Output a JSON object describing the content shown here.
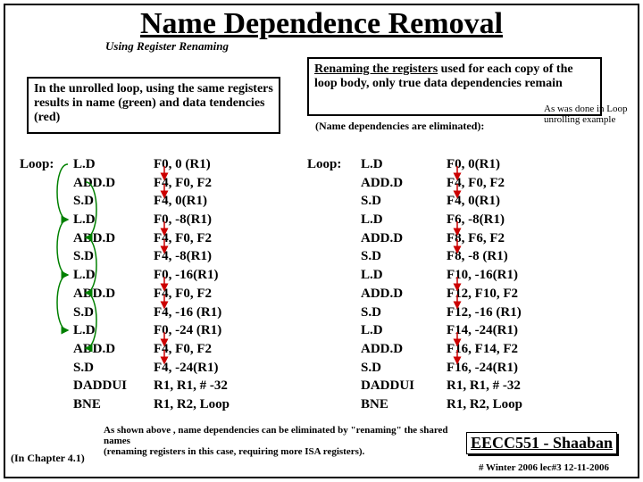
{
  "title": "Name Dependence Removal",
  "subtitle": "Using Register Renaming",
  "leftBox": "In the unrolled loop, using the same registers results in name (green) and data tendencies (red)",
  "rightBoxA": "Renaming the registers",
  "rightBoxB": " used for each copy of the loop body, only true data dependencies remain",
  "noteElim": "(Name dependencies are eliminated):",
  "noteAswas": "As was done in Loop unrolling example",
  "loopLabel": "Loop:",
  "leftOps": [
    "L.D",
    "ADD.D",
    "S.D",
    "L.D",
    "ADD.D",
    "S.D",
    "L.D",
    "ADD.D",
    "S.D",
    "L.D",
    "ADD.D",
    "S.D",
    "DADDUI",
    "BNE"
  ],
  "leftArgs": [
    "F0, 0 (R1)",
    "F4, F0, F2",
    "F4, 0(R1)",
    "F0, -8(R1)",
    "F4, F0, F2",
    "F4, -8(R1)",
    "F0, -16(R1)",
    "F4, F0, F2",
    "F4, -16 (R1)",
    "F0, -24 (R1)",
    "F4, F0, F2",
    "F4, -24(R1)",
    "R1, R1, # -32",
    "R1, R2, Loop"
  ],
  "rightOps": [
    "L.D",
    "ADD.D",
    "S.D",
    "L.D",
    "ADD.D",
    "S.D",
    "L.D",
    "ADD.D",
    "S.D",
    "L.D",
    "ADD.D",
    "S.D",
    "DADDUI",
    "BNE"
  ],
  "rightArgs": [
    "F0, 0(R1)",
    "F4, F0, F2",
    "F4, 0(R1)",
    "F6, -8(R1)",
    "F8, F6, F2",
    "F8, -8 (R1)",
    "F10, -16(R1)",
    "F12, F10, F2",
    "F12, -16 (R1)",
    "F14, -24(R1)",
    "F16, F14, F2",
    "F16, -24(R1)",
    "R1, R1, # -32",
    "R1, R2, Loop"
  ],
  "footerNote": "As shown above , name dependencies can be eliminated by \"renaming\" the shared names\n(renaming registers in this case, requiring more ISA registers).",
  "chapter": "(In  Chapter 4.1)",
  "eecc": "EECC551 - Shaaban",
  "date": "# Winter 2006  lec#3   12-11-2006",
  "arrows": {
    "green": "#008000",
    "red": "#cc0000"
  }
}
